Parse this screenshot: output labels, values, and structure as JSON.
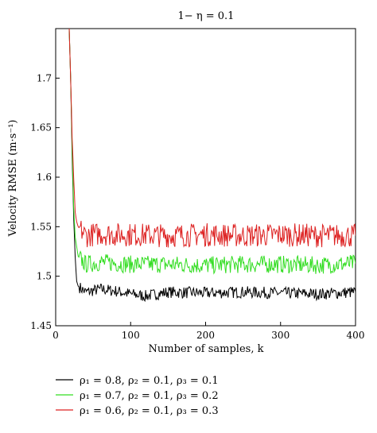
{
  "chart_data": {
    "type": "line",
    "title": "1− η = 0.1",
    "xlabel": "Number of samples, k",
    "ylabel": "Velocity RMSE (m·s⁻¹)",
    "xlim": [
      0,
      400
    ],
    "ylim": [
      1.45,
      1.75
    ],
    "xticks": [
      "0",
      "100",
      "200",
      "300",
      "400"
    ],
    "yticks": [
      "1.45",
      "1.5",
      "1.55",
      "1.6",
      "1.65",
      "1.7"
    ],
    "grid": false,
    "legend_position": "below",
    "series": [
      {
        "name": "ρ₁ = 0.8, ρ₂ = 0.1, ρ₃ = 0.1",
        "color": "#000000",
        "points": [
          [
            18,
            1.75
          ],
          [
            20,
            1.7
          ],
          [
            22,
            1.62
          ],
          [
            24,
            1.56
          ],
          [
            26,
            1.52
          ],
          [
            28,
            1.495
          ],
          [
            30,
            1.49
          ],
          [
            40,
            1.484
          ],
          [
            60,
            1.487
          ],
          [
            80,
            1.485
          ],
          [
            100,
            1.482
          ],
          [
            120,
            1.48
          ],
          [
            150,
            1.484
          ],
          [
            200,
            1.483
          ],
          [
            250,
            1.484
          ],
          [
            300,
            1.483
          ],
          [
            350,
            1.482
          ],
          [
            400,
            1.484
          ]
        ]
      },
      {
        "name": "ρ₁ = 0.7, ρ₂ = 0.1, ρ₃ = 0.2",
        "color": "#33dd22",
        "points": [
          [
            18,
            1.75
          ],
          [
            20,
            1.7
          ],
          [
            22,
            1.63
          ],
          [
            24,
            1.57
          ],
          [
            26,
            1.54
          ],
          [
            28,
            1.53
          ],
          [
            30,
            1.52
          ],
          [
            40,
            1.512
          ],
          [
            60,
            1.514
          ],
          [
            80,
            1.513
          ],
          [
            100,
            1.512
          ],
          [
            150,
            1.512
          ],
          [
            200,
            1.511
          ],
          [
            250,
            1.512
          ],
          [
            300,
            1.512
          ],
          [
            350,
            1.511
          ],
          [
            400,
            1.513
          ]
        ]
      },
      {
        "name": "ρ₁ = 0.6, ρ₂ = 0.1, ρ₃ = 0.3",
        "color": "#dd2222",
        "points": [
          [
            18,
            1.75
          ],
          [
            20,
            1.7
          ],
          [
            22,
            1.64
          ],
          [
            24,
            1.6
          ],
          [
            26,
            1.565
          ],
          [
            28,
            1.555
          ],
          [
            30,
            1.55
          ],
          [
            40,
            1.541
          ],
          [
            60,
            1.543
          ],
          [
            80,
            1.542
          ],
          [
            100,
            1.542
          ],
          [
            150,
            1.541
          ],
          [
            200,
            1.542
          ],
          [
            250,
            1.541
          ],
          [
            300,
            1.542
          ],
          [
            350,
            1.541
          ],
          [
            400,
            1.541
          ]
        ]
      }
    ]
  }
}
